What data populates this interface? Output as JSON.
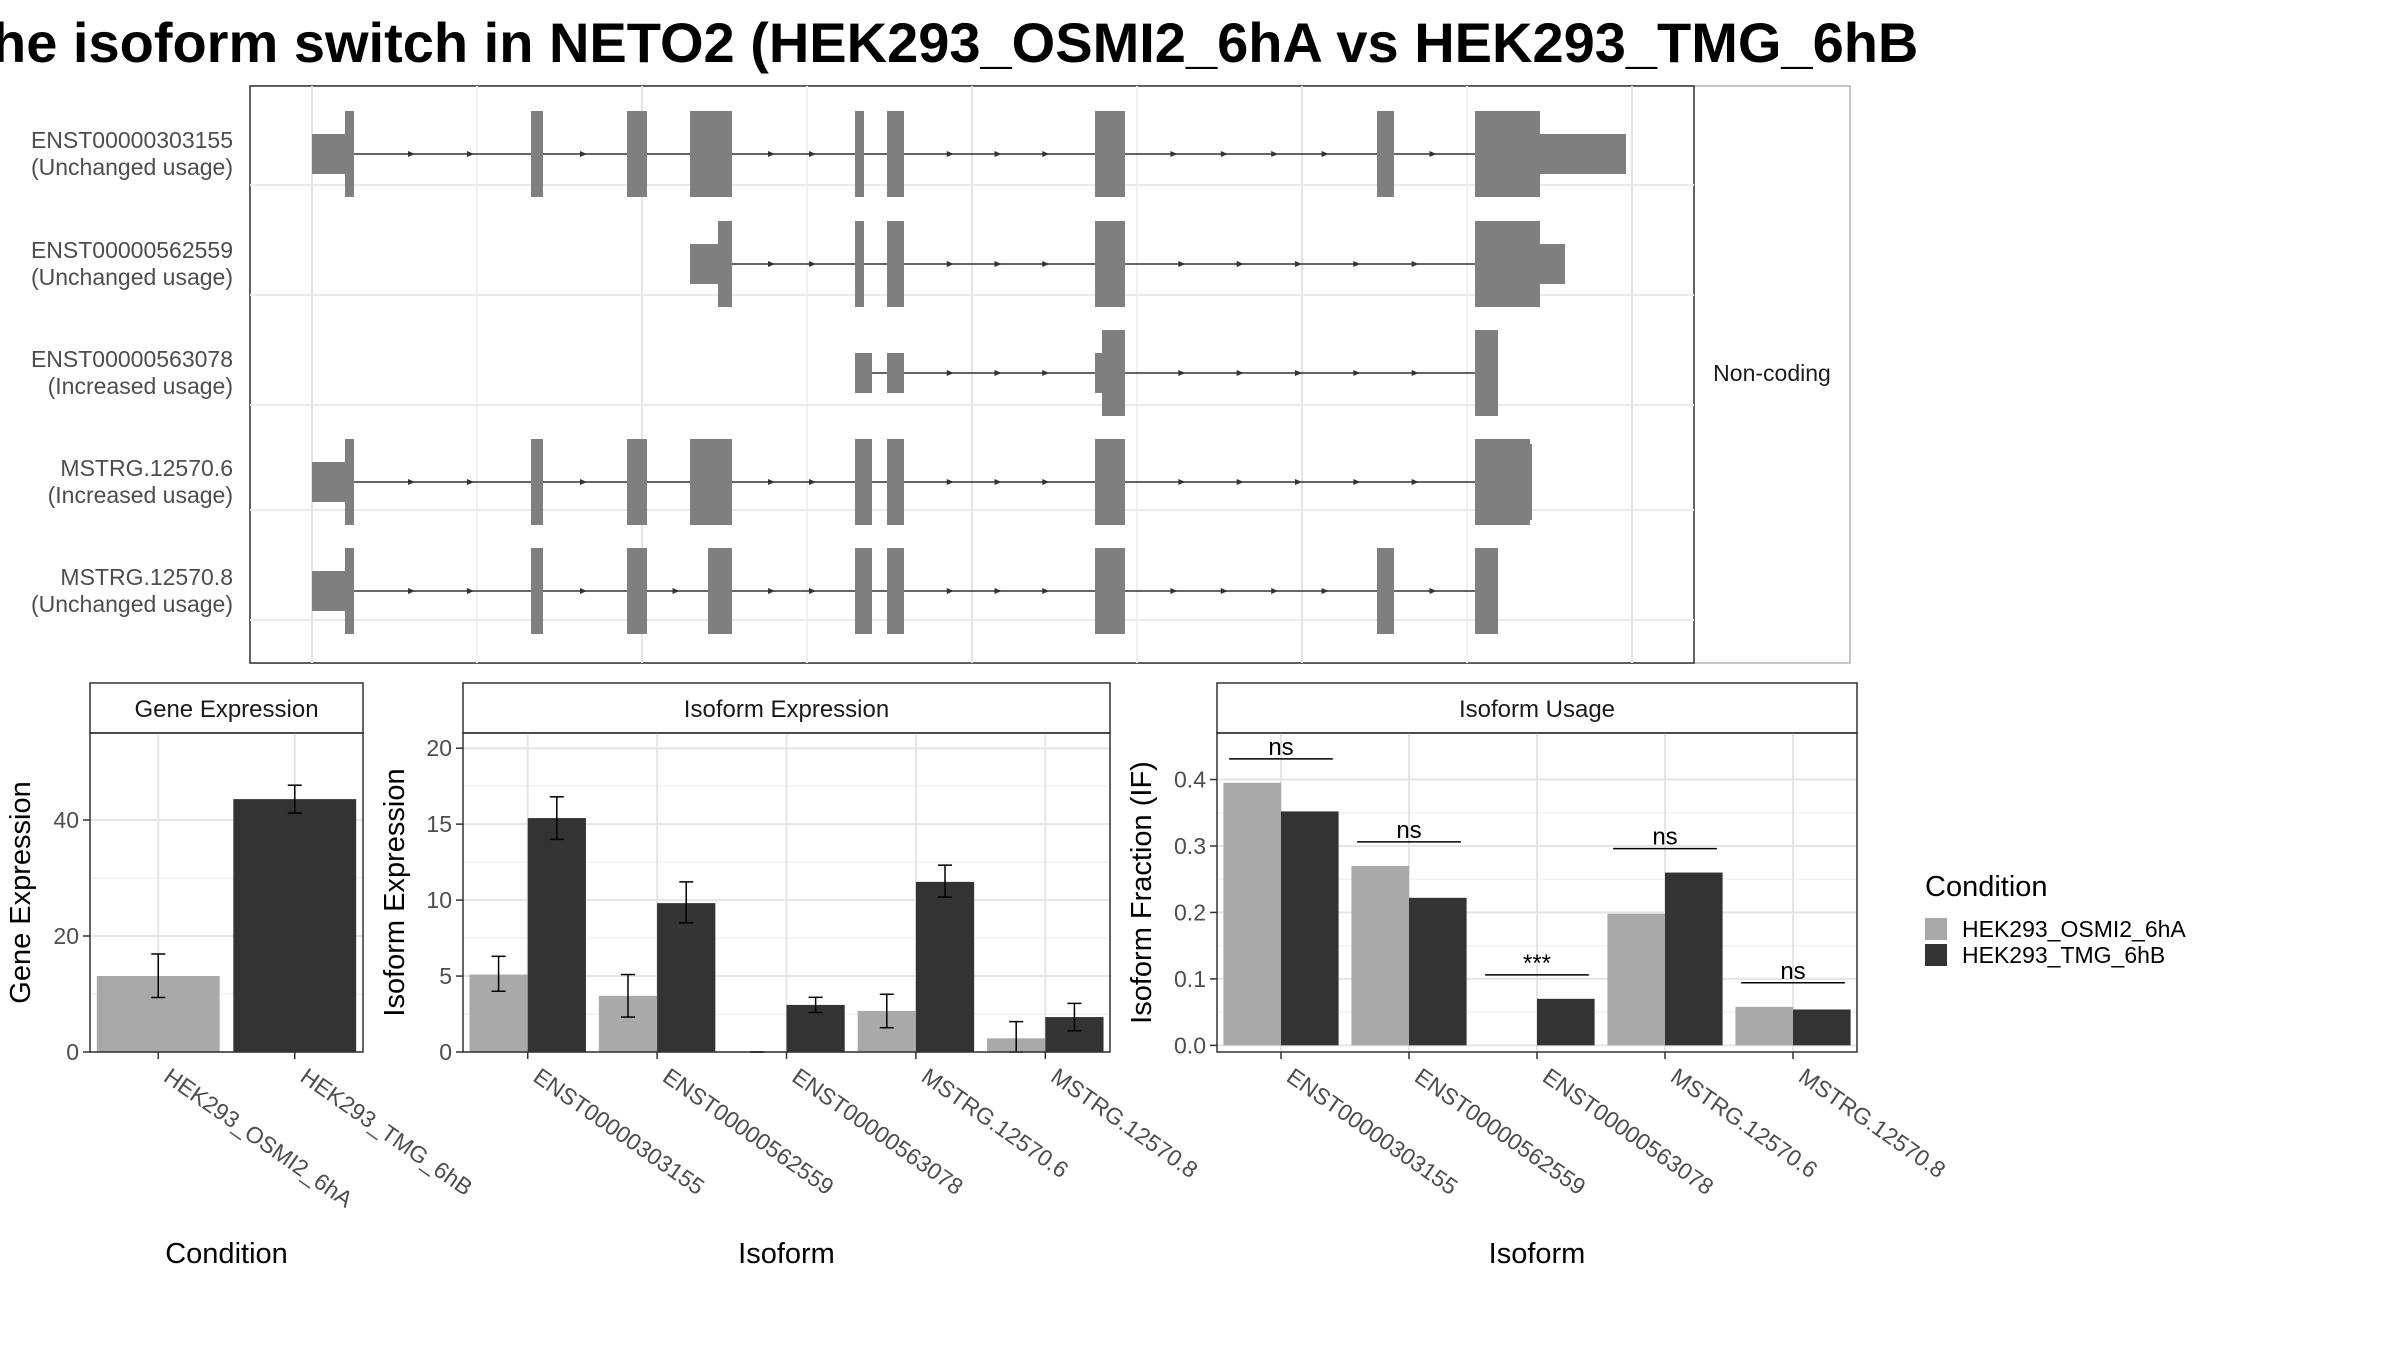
{
  "title": "he isoform switch in NETO2 (HEK293_OSMI2_6hA vs HEK293_TMG_6hB",
  "colors": {
    "osmi": "#a9a9a9",
    "tmg": "#333333",
    "exon": "#7f7f7f"
  },
  "chart_data": [
    {
      "type": "gene-structure",
      "facet_label": "Non-coding",
      "transcripts": [
        {
          "id": "ENST00000303155",
          "usage": "(Unchanged usage)"
        },
        {
          "id": "ENST00000562559",
          "usage": "(Unchanged usage)"
        },
        {
          "id": "ENST00000563078",
          "usage": "(Increased usage)"
        },
        {
          "id": "MSTRG.12570.6",
          "usage": "(Increased usage)"
        },
        {
          "id": "MSTRG.12570.8",
          "usage": "(Unchanged usage)"
        }
      ]
    },
    {
      "type": "bar",
      "title": "Gene Expression",
      "xlabel": "Condition",
      "ylabel": "Gene Expression",
      "ylim": [
        0,
        55
      ],
      "yticks": [
        0,
        20,
        40
      ],
      "categories": [
        "HEK293_OSMI2_6hA",
        "HEK293_TMG_6hB"
      ],
      "values": [
        13.1,
        43.6
      ],
      "errors": [
        [
          9.4,
          16.9
        ],
        [
          41.2,
          46.0
        ]
      ]
    },
    {
      "type": "bar",
      "title": "Isoform Expression",
      "xlabel": "Isoform",
      "ylabel": "Isoform Expression",
      "ylim": [
        0,
        21
      ],
      "yticks": [
        0,
        5,
        10,
        15,
        20
      ],
      "categories": [
        "ENST00000303155",
        "ENST00000562559",
        "ENST00000563078",
        "MSTRG.12570.6",
        "MSTRG.12570.8"
      ],
      "series": [
        {
          "name": "HEK293_OSMI2_6hA",
          "values": [
            5.1,
            3.7,
            0.0,
            2.7,
            0.9
          ],
          "errors": [
            [
              4.0,
              6.3
            ],
            [
              2.3,
              5.1
            ],
            [
              0.0,
              0.0
            ],
            [
              1.6,
              3.8
            ],
            [
              0.0,
              2.0
            ]
          ]
        },
        {
          "name": "HEK293_TMG_6hB",
          "values": [
            15.4,
            9.8,
            3.1,
            11.2,
            2.3
          ],
          "errors": [
            [
              14.0,
              16.8
            ],
            [
              8.5,
              11.2
            ],
            [
              2.6,
              3.6
            ],
            [
              10.2,
              12.3
            ],
            [
              1.4,
              3.2
            ]
          ]
        }
      ]
    },
    {
      "type": "bar",
      "title": "Isoform Usage",
      "xlabel": "Isoform",
      "ylabel": "Isoform Fraction (IF)",
      "ylim": [
        -0.01,
        0.47
      ],
      "yticks": [
        0.0,
        0.1,
        0.2,
        0.3,
        0.4
      ],
      "ytick_labels": [
        "0.0",
        "0.1",
        "0.2",
        "0.3",
        "0.4"
      ],
      "categories": [
        "ENST00000303155",
        "ENST00000562559",
        "ENST00000563078",
        "MSTRG.12570.6",
        "MSTRG.12570.8"
      ],
      "series": [
        {
          "name": "HEK293_OSMI2_6hA",
          "values": [
            0.395,
            0.27,
            0.0,
            0.198,
            0.058
          ]
        },
        {
          "name": "HEK293_TMG_6hB",
          "values": [
            0.352,
            0.222,
            0.07,
            0.26,
            0.054
          ]
        }
      ],
      "significance": [
        "ns",
        "ns",
        "***",
        "ns",
        "ns"
      ]
    }
  ],
  "legend": {
    "title": "Condition",
    "entries": [
      "HEK293_OSMI2_6hA",
      "HEK293_TMG_6hB"
    ],
    "placement": "right"
  }
}
